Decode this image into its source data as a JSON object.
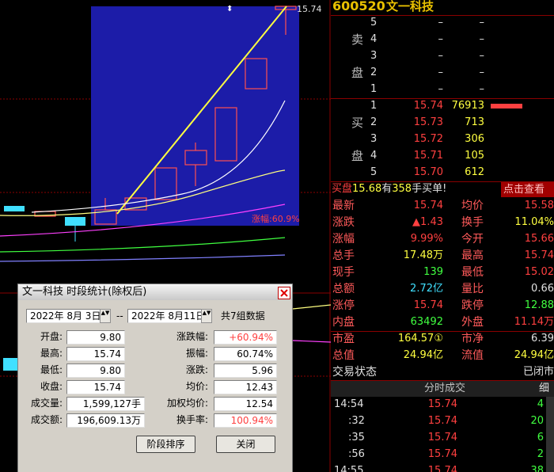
{
  "chart": {
    "high_label": "15.74",
    "change_label": "涨幅:60.9%"
  },
  "quote": {
    "code": "600520",
    "name": "文一科技",
    "sell_label": [
      "卖",
      "盘"
    ],
    "buy_label": [
      "买",
      "盘"
    ],
    "sell": [
      [
        "5",
        "–",
        "–"
      ],
      [
        "4",
        "–",
        "–"
      ],
      [
        "3",
        "–",
        "–"
      ],
      [
        "2",
        "–",
        "–"
      ],
      [
        "1",
        "–",
        "–"
      ]
    ],
    "buy": [
      [
        "1",
        "15.74",
        "76913"
      ],
      [
        "2",
        "15.73",
        "713"
      ],
      [
        "3",
        "15.72",
        "306"
      ],
      [
        "4",
        "15.71",
        "105"
      ],
      [
        "5",
        "15.70",
        "612"
      ]
    ],
    "notice": [
      "买盘",
      "15.68",
      "有",
      "358",
      "手买单!"
    ],
    "notice_link": "点击查看",
    "stats": [
      [
        "最新",
        "15.74",
        "均价",
        "15.58"
      ],
      [
        "涨跌",
        "▲1.43",
        "换手",
        "11.04%"
      ],
      [
        "涨幅",
        "9.99%",
        "今开",
        "15.66"
      ],
      [
        "总手",
        "17.48万",
        "最高",
        "15.74"
      ],
      [
        "现手",
        "139",
        "最低",
        "15.02"
      ],
      [
        "总额",
        "2.72亿",
        "量比",
        "0.66"
      ],
      [
        "涨停",
        "15.74",
        "跌停",
        "12.88"
      ],
      [
        "内盘",
        "63492",
        "外盘",
        "11.14万"
      ],
      [
        "市盈",
        "164.57①",
        "市净",
        "6.39"
      ],
      [
        "总值",
        "24.94亿",
        "流值",
        "24.94亿"
      ]
    ],
    "status": [
      "交易状态",
      "已闭市"
    ]
  },
  "ticks": {
    "title": "分时成交",
    "detail": "细",
    "rows": [
      [
        "14:54",
        "15.74",
        "4"
      ],
      [
        ":32",
        "15.74",
        "20"
      ],
      [
        ":35",
        "15.74",
        "6"
      ],
      [
        ":56",
        "15.74",
        "2"
      ],
      [
        "14:55",
        "15.74",
        "38"
      ]
    ]
  },
  "dialog": {
    "title": "文一科技 时段统计(除权后)",
    "start_date": "2022年 8月 3日",
    "separator": "--",
    "end_date": "2022年 8月11日",
    "count": "共7组数据",
    "fields": [
      [
        "开盘:",
        "9.80",
        "涨跌幅:",
        "+60.94%"
      ],
      [
        "最高:",
        "15.74",
        "振幅:",
        "60.74%"
      ],
      [
        "最低:",
        "9.80",
        "涨跌:",
        "5.96"
      ],
      [
        "收盘:",
        "15.74",
        "均价:",
        "12.43"
      ],
      [
        "成交量:",
        "1,599,127手",
        "加权均价:",
        "12.54"
      ],
      [
        "成交额:",
        "196,609.13万",
        "换手率:",
        "100.94%"
      ]
    ],
    "buttons": [
      "阶段排序",
      "关闭"
    ]
  }
}
